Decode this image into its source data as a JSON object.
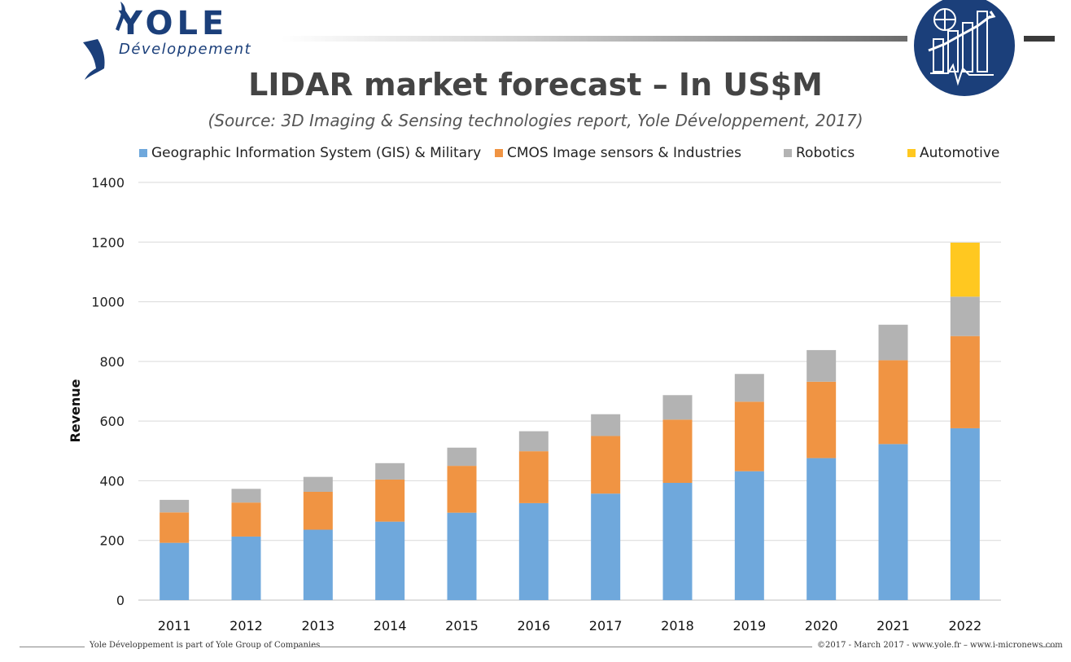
{
  "brand": {
    "name": "YOLE",
    "tagline": "Développement"
  },
  "title": "LIDAR market forecast – In US$M",
  "subtitle": "(Source: 3D Imaging & Sensing technologies report, Yole Développement, 2017)",
  "footer": {
    "left": "Yole Développement is part of Yole Group of Companies",
    "right": "©2017 - March 2017 - www.yole.fr – www.i-micronews.com"
  },
  "chart_data": {
    "type": "bar",
    "stacked": true,
    "categories": [
      "2011",
      "2012",
      "2013",
      "2014",
      "2015",
      "2016",
      "2017",
      "2018",
      "2019",
      "2020",
      "2021",
      "2022"
    ],
    "series": [
      {
        "name": "Geographic Information System (GIS) & Military",
        "color": "#6fa8dc",
        "values": [
          192,
          213,
          236,
          263,
          293,
          325,
          357,
          393,
          432,
          476,
          523,
          576
        ]
      },
      {
        "name": "CMOS Image sensors & Industries",
        "color": "#f09443",
        "values": [
          102,
          114,
          127,
          141,
          157,
          174,
          193,
          212,
          233,
          256,
          281,
          309
        ]
      },
      {
        "name": "Robotics",
        "color": "#b3b3b3",
        "values": [
          42,
          46,
          50,
          55,
          61,
          67,
          73,
          82,
          93,
          106,
          119,
          132
        ]
      },
      {
        "name": "Automotive",
        "color": "#ffc820",
        "values": [
          0,
          0,
          0,
          0,
          0,
          0,
          0,
          0,
          0,
          0,
          0,
          181
        ]
      }
    ],
    "ylabel": "Revenue",
    "xlabel": "",
    "ylim": [
      0,
      1400
    ],
    "yticks": [
      0,
      200,
      400,
      600,
      800,
      1000,
      1200,
      1400
    ],
    "grid": true,
    "legend_position": "top"
  }
}
